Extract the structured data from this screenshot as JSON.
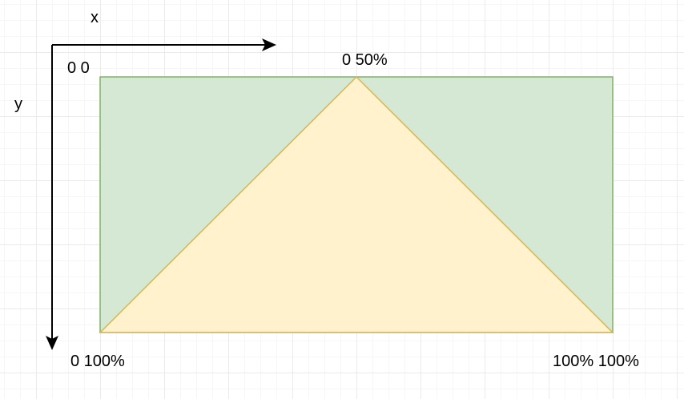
{
  "axes": {
    "x_label": "x",
    "y_label": "y"
  },
  "points": {
    "top_left": "0 0",
    "top_middle": "0 50%",
    "bottom_left": "0 100%",
    "bottom_right": "100% 100%"
  },
  "colors": {
    "rectangle_fill": "#d5e8d4",
    "rectangle_stroke": "#82b366",
    "triangle_fill": "#fff2cc",
    "triangle_stroke": "#d6b656",
    "arrow": "#000000"
  }
}
